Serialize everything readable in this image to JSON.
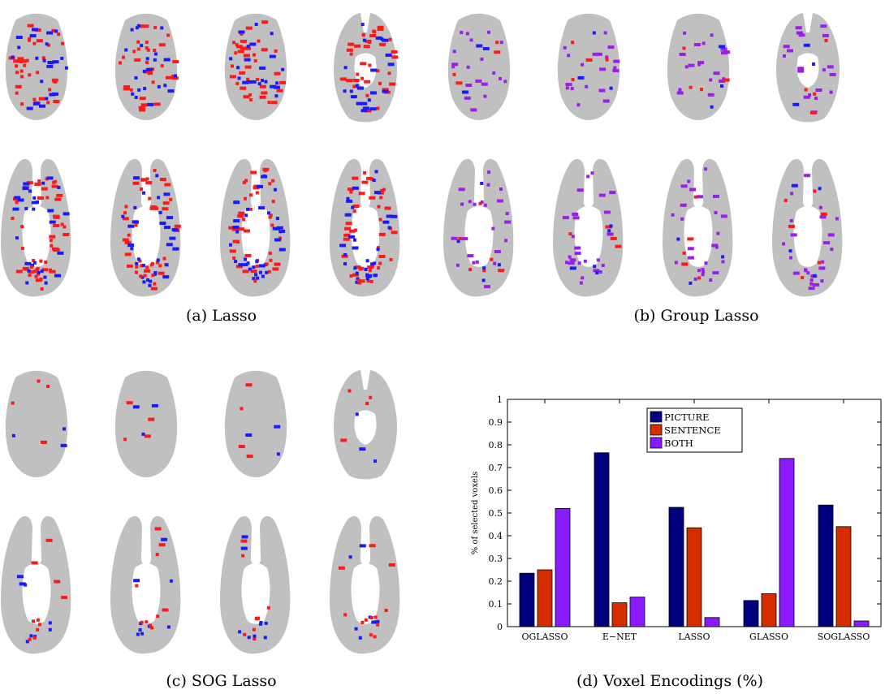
{
  "panels": [
    {
      "id": "a",
      "caption": "(a)  Lasso",
      "voxel_palette": [
        "#ff1a1a",
        "#1a1aff"
      ],
      "voxel_counts": [
        130,
        80
      ],
      "lower_cluster": 34
    },
    {
      "id": "b",
      "caption": "(b)  Group Lasso",
      "voxel_palette": [
        "#9b1fe8",
        "#ff1a1a",
        "#1a1aff"
      ],
      "voxel_counts": [
        70,
        14,
        10
      ],
      "lower_cluster": 12
    },
    {
      "id": "c",
      "caption": "(c)  SOG Lasso",
      "voxel_palette": [
        "#ff1a1a",
        "#1a1aff"
      ],
      "voxel_counts": [
        16,
        12
      ],
      "lower_cluster": 20
    }
  ],
  "colors": {
    "brain": "#c0c0c0",
    "picture": "#00007f",
    "sentence": "#d42d00",
    "both": "#8a1aff"
  },
  "chart_caption": "(d)  Voxel Encodings (%)",
  "chart_data": {
    "type": "bar",
    "categories": [
      "OGLASSO",
      "E−NET",
      "LASSO",
      "GLASSO",
      "SOGLASSO"
    ],
    "series": [
      {
        "name": "PICTURE",
        "values": [
          0.235,
          0.765,
          0.525,
          0.115,
          0.535
        ],
        "color": "#00007f"
      },
      {
        "name": "SENTENCE",
        "values": [
          0.25,
          0.105,
          0.435,
          0.145,
          0.44
        ],
        "color": "#d42d00"
      },
      {
        "name": "BOTH",
        "values": [
          0.52,
          0.13,
          0.04,
          0.74,
          0.025
        ],
        "color": "#8a1aff"
      }
    ],
    "ylabel": "% of selected voxels",
    "ylim": [
      0,
      1
    ],
    "yticks": [
      "0",
      "0.1",
      "0.2",
      "0.3",
      "0.4",
      "0.5",
      "0.6",
      "0.7",
      "0.8",
      "0.9",
      "1"
    ],
    "legend": "top-center",
    "grid": false
  }
}
